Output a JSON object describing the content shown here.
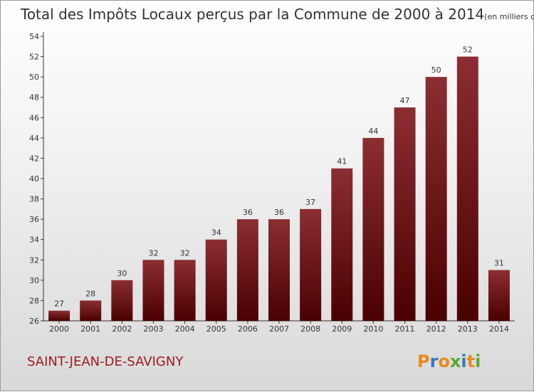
{
  "chart_data": {
    "type": "bar",
    "title": "Total des Impôts Locaux perçus par la Commune de 2000 à 2014",
    "unit": "(en milliers d'€)",
    "categories": [
      "2000",
      "2001",
      "2002",
      "2003",
      "2004",
      "2005",
      "2006",
      "2007",
      "2008",
      "2009",
      "2010",
      "2011",
      "2012",
      "2013",
      "2014"
    ],
    "values": [
      27,
      28,
      30,
      32,
      32,
      34,
      36,
      36,
      37,
      41,
      44,
      47,
      50,
      52,
      31
    ],
    "ylim": [
      26,
      54
    ],
    "yticks": [
      26,
      28,
      30,
      32,
      34,
      36,
      38,
      40,
      42,
      44,
      46,
      48,
      50,
      52,
      54
    ],
    "xlabel": "",
    "ylabel": "",
    "grid": false,
    "bar_color_top": "#8b2e33",
    "bar_color_bottom": "#4a0000"
  },
  "commune": "SAINT-JEAN-DE-SAVIGNY",
  "logo": {
    "letters": [
      "P",
      "r",
      "o",
      "x",
      "i",
      "t",
      "i"
    ],
    "colors": [
      "#e8891a",
      "#2b7bc0",
      "#e8891a",
      "#5aa832",
      "#2b7bc0",
      "#e8891a",
      "#5aa832"
    ]
  }
}
